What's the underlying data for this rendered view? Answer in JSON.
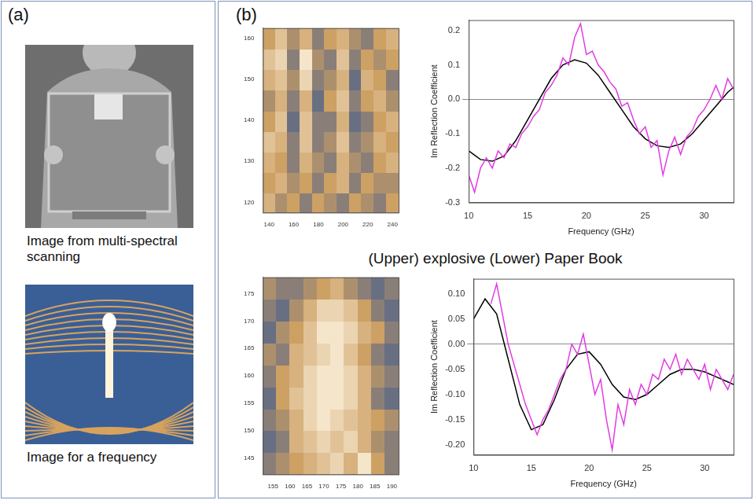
{
  "panels": [
    {
      "label": "(a)",
      "images": [
        {
          "caption": "Image from multi-spectral scanning"
        },
        {
          "caption": "Image for a frequency"
        }
      ]
    },
    {
      "label": "(b)",
      "caption": "(Upper) explosive (Lower) Paper Book"
    }
  ],
  "chart_data": [
    {
      "type": "heatmap",
      "x": [
        140,
        150,
        160,
        170,
        180,
        190,
        200,
        210,
        220,
        230,
        240
      ],
      "y": [
        120,
        125,
        130,
        135,
        140,
        145,
        150,
        155,
        160
      ],
      "cells": [
        [
          0.6,
          0.4,
          0.5,
          0.3,
          0.5,
          0.4,
          0.3,
          0.5,
          0.4,
          0.3,
          0.5
        ],
        [
          0.5,
          0.6,
          0.4,
          0.5,
          0.3,
          0.5,
          0.6,
          0.3,
          0.5,
          0.4,
          0.4
        ],
        [
          0.6,
          0.5,
          0.3,
          0.6,
          0.4,
          0.3,
          0.6,
          0.4,
          0.3,
          0.5,
          0.6
        ],
        [
          0.7,
          0.6,
          0.3,
          0.7,
          0.3,
          0.4,
          0.7,
          0.3,
          0.4,
          0.6,
          0.5
        ],
        [
          0.5,
          0.7,
          0.2,
          0.7,
          0.3,
          0.3,
          0.6,
          0.2,
          0.3,
          0.5,
          0.6
        ],
        [
          0.4,
          0.6,
          0.3,
          0.6,
          0.2,
          0.5,
          0.7,
          0.3,
          0.5,
          0.6,
          0.4
        ],
        [
          0.6,
          0.7,
          0.4,
          0.8,
          0.3,
          0.4,
          0.6,
          0.2,
          0.6,
          0.5,
          0.3
        ],
        [
          0.7,
          0.8,
          0.3,
          0.9,
          0.4,
          0.3,
          0.7,
          0.3,
          0.5,
          0.4,
          0.5
        ],
        [
          0.5,
          0.7,
          0.4,
          0.6,
          0.3,
          0.5,
          0.6,
          0.4,
          0.3,
          0.5,
          0.6
        ]
      ],
      "xlim": [
        135,
        245
      ],
      "ylim": [
        117.5,
        162.5
      ],
      "xticks": [
        140,
        160,
        180,
        200,
        220,
        240
      ],
      "yticks": [
        120,
        130,
        140,
        150,
        160
      ],
      "grid": false
    },
    {
      "type": "line",
      "x_label": "Frequency (GHz)",
      "y_label": "Im Reflection Coefficient",
      "xlim": [
        10,
        32.5
      ],
      "ylim": [
        -0.3,
        0.23
      ],
      "xticks": [
        10,
        15,
        20,
        25,
        30
      ],
      "yticks": [
        -0.3,
        -0.2,
        -0.1,
        {
          "value": 0,
          "label": "0.0"
        },
        0.1,
        0.2
      ],
      "grid": false,
      "series": [
        {
          "color": "#e23be2",
          "x": [
            10,
            10.5,
            11,
            11.5,
            12,
            12.5,
            13,
            13.5,
            14,
            14.5,
            15,
            15.5,
            16,
            16.5,
            17,
            17.5,
            18,
            18.5,
            19,
            19.5,
            20,
            20.5,
            21,
            21.5,
            22,
            22.5,
            23,
            23.5,
            24,
            24.5,
            25,
            25.5,
            26,
            26.5,
            27,
            27.5,
            28,
            28.5,
            29,
            29.5,
            30,
            30.5,
            31,
            31.5,
            32,
            32.5
          ],
          "values": [
            -0.22,
            -0.27,
            -0.2,
            -0.17,
            -0.2,
            -0.15,
            -0.17,
            -0.13,
            -0.14,
            -0.1,
            -0.08,
            -0.05,
            -0.03,
            0.02,
            0.04,
            0.07,
            0.12,
            0.1,
            0.18,
            0.22,
            0.13,
            0.14,
            0.1,
            0.08,
            0.05,
            0.03,
            -0.02,
            -0.01,
            -0.06,
            -0.1,
            -0.08,
            -0.14,
            -0.12,
            -0.22,
            -0.15,
            -0.11,
            -0.16,
            -0.11,
            -0.09,
            -0.05,
            -0.03,
            0.0,
            0.04,
            0.0,
            0.06,
            0.03
          ]
        },
        {
          "color": "#000000",
          "x": [
            10,
            11,
            12,
            13,
            14,
            15,
            16,
            17,
            18,
            19,
            20,
            21,
            22,
            23,
            24,
            25,
            26,
            27,
            28,
            29,
            30,
            31,
            32,
            32.5
          ],
          "values": [
            -0.15,
            -0.175,
            -0.18,
            -0.165,
            -0.12,
            -0.06,
            0.0,
            0.06,
            0.1,
            0.115,
            0.105,
            0.07,
            0.02,
            -0.03,
            -0.08,
            -0.115,
            -0.135,
            -0.14,
            -0.13,
            -0.1,
            -0.06,
            -0.02,
            0.02,
            0.035
          ]
        }
      ]
    },
    {
      "type": "heatmap",
      "x": [
        154,
        158,
        162,
        166,
        170,
        174,
        178,
        182,
        186,
        190
      ],
      "y": [
        144,
        148,
        152,
        156,
        160,
        164,
        168,
        172,
        176
      ],
      "cells": [
        [
          0.3,
          0.4,
          0.5,
          0.6,
          0.7,
          0.8,
          0.6,
          0.9,
          0.5,
          0.3
        ],
        [
          0.2,
          0.3,
          0.6,
          0.7,
          0.8,
          0.7,
          0.8,
          0.6,
          0.4,
          0.3
        ],
        [
          0.3,
          0.4,
          0.6,
          0.8,
          0.9,
          0.8,
          0.7,
          0.6,
          0.5,
          0.4
        ],
        [
          0.2,
          0.5,
          0.7,
          0.8,
          0.9,
          0.9,
          0.8,
          0.6,
          0.3,
          0.2
        ],
        [
          0.3,
          0.5,
          0.6,
          0.8,
          0.9,
          0.9,
          0.8,
          0.6,
          0.4,
          0.3
        ],
        [
          0.4,
          0.3,
          0.6,
          0.7,
          0.8,
          0.9,
          0.7,
          0.5,
          0.3,
          0.2
        ],
        [
          0.2,
          0.4,
          0.5,
          0.7,
          0.9,
          0.9,
          0.8,
          0.6,
          0.5,
          0.3
        ],
        [
          0.3,
          0.2,
          0.4,
          0.6,
          0.8,
          0.8,
          0.7,
          0.5,
          0.3,
          0.2
        ],
        [
          0.4,
          0.3,
          0.3,
          0.4,
          0.5,
          0.6,
          0.4,
          0.3,
          0.2,
          0.3
        ]
      ],
      "xlim": [
        152,
        192
      ],
      "ylim": [
        142,
        178
      ],
      "xticks": [
        155,
        160,
        165,
        170,
        175,
        180,
        185,
        190
      ],
      "yticks": [
        145,
        150,
        155,
        160,
        165,
        170,
        175
      ],
      "grid": false
    },
    {
      "type": "line",
      "x_label": "Frequency (GHz)",
      "y_label": "Im Reflection Coefficient",
      "xlim": [
        10,
        32.5
      ],
      "ylim": [
        -0.22,
        0.13
      ],
      "xticks": [
        10,
        15,
        20,
        25,
        30
      ],
      "yticks": [
        {
          "value": -0.2,
          "label": "-0.20"
        },
        -0.15,
        {
          "value": -0.1,
          "label": "-0.10"
        },
        -0.05,
        {
          "value": 0,
          "label": "0.00"
        },
        0.05,
        {
          "value": 0.1,
          "label": "0.10"
        }
      ],
      "grid": false,
      "series": [
        {
          "color": "#e23be2",
          "x": [
            11.5,
            12,
            12.5,
            13,
            13.5,
            14,
            14.5,
            15,
            15.5,
            16,
            16.5,
            17,
            17.5,
            18,
            18.5,
            19,
            19.5,
            20,
            20.5,
            21,
            21.5,
            22,
            22.5,
            23,
            23.5,
            24,
            24.5,
            25,
            25.5,
            26,
            26.5,
            27,
            27.5,
            28,
            28.5,
            29,
            29.5,
            30,
            30.5,
            31,
            31.5,
            32,
            32.5
          ],
          "values": [
            0.08,
            0.12,
            0.06,
            0.0,
            -0.04,
            -0.08,
            -0.12,
            -0.15,
            -0.18,
            -0.15,
            -0.13,
            -0.1,
            -0.07,
            -0.05,
            0.0,
            -0.02,
            0.02,
            -0.04,
            -0.1,
            -0.07,
            -0.15,
            -0.21,
            -0.12,
            -0.16,
            -0.09,
            -0.12,
            -0.08,
            -0.1,
            -0.06,
            -0.07,
            -0.03,
            -0.05,
            -0.02,
            -0.06,
            -0.03,
            -0.05,
            -0.07,
            -0.04,
            -0.09,
            -0.05,
            -0.07,
            -0.09,
            -0.06
          ]
        },
        {
          "color": "#000000",
          "x": [
            10,
            11,
            12,
            13,
            14,
            15,
            16,
            17,
            18,
            19,
            20,
            21,
            22,
            23,
            24,
            25,
            26,
            27,
            28,
            29,
            30,
            31,
            32,
            32.5
          ],
          "values": [
            0.05,
            0.09,
            0.06,
            -0.03,
            -0.12,
            -0.17,
            -0.16,
            -0.11,
            -0.05,
            -0.02,
            -0.015,
            -0.04,
            -0.08,
            -0.105,
            -0.11,
            -0.1,
            -0.08,
            -0.06,
            -0.05,
            -0.05,
            -0.055,
            -0.065,
            -0.075,
            -0.08
          ]
        }
      ]
    }
  ]
}
